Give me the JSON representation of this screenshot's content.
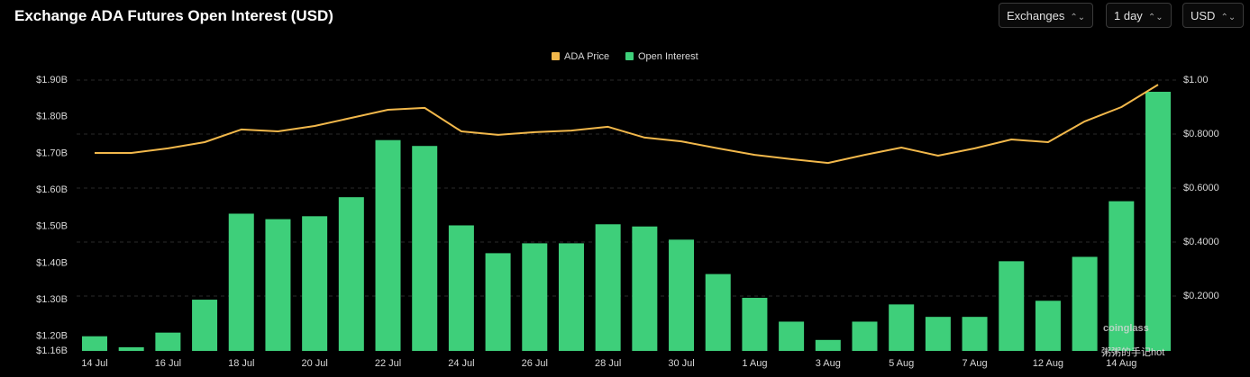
{
  "chart_data": {
    "type": "bar_line",
    "title": "Exchange ADA Futures Open Interest (USD)",
    "controls": [
      "Exchanges",
      "1 day",
      "USD"
    ],
    "watermark": "coinglass",
    "overlay_text": "粥粥的手记hot",
    "categories": [
      "14 Jul",
      null,
      "16 Jul",
      null,
      "18 Jul",
      null,
      "20 Jul",
      null,
      "22 Jul",
      null,
      "24 Jul",
      null,
      "26 Jul",
      null,
      "28 Jul",
      null,
      "30 Jul",
      null,
      "1 Aug",
      null,
      "3 Aug",
      null,
      "5 Aug",
      null,
      "7 Aug",
      null,
      "12 Aug",
      null,
      "14 Aug",
      null
    ],
    "series": [
      {
        "name": "ADA Price",
        "color": "#f2b84b",
        "type": "line",
        "axis": "y2",
        "values": [
          0.73,
          0.73,
          0.747,
          0.77,
          0.817,
          0.81,
          0.83,
          0.86,
          0.89,
          0.897,
          0.81,
          0.797,
          0.807,
          0.813,
          0.827,
          0.787,
          0.773,
          0.747,
          0.723,
          0.707,
          0.693,
          0.723,
          0.75,
          0.72,
          0.747,
          0.78,
          0.77,
          0.847,
          0.9,
          0.983
        ]
      },
      {
        "name": "Open Interest",
        "color": "#3ecf7a",
        "type": "bar",
        "values": [
          1.2,
          1.17,
          1.21,
          1.3,
          1.535,
          1.52,
          1.528,
          1.58,
          1.736,
          1.72,
          1.503,
          1.427,
          1.454,
          1.454,
          1.506,
          1.5,
          1.464,
          1.37,
          1.305,
          1.24,
          1.19,
          1.24,
          1.287,
          1.253,
          1.253,
          1.405,
          1.297,
          1.417,
          1.569,
          1.868
        ]
      }
    ],
    "ylim": [
      1.16,
      1.9
    ],
    "yticks": [
      {
        "value": 1.16,
        "label": "$1.16B"
      },
      {
        "value": 1.2,
        "label": "$1.20B"
      },
      {
        "value": 1.3,
        "label": "$1.30B"
      },
      {
        "value": 1.4,
        "label": "$1.40B"
      },
      {
        "value": 1.5,
        "label": "$1.50B"
      },
      {
        "value": 1.6,
        "label": "$1.60B"
      },
      {
        "value": 1.7,
        "label": "$1.70B"
      },
      {
        "value": 1.8,
        "label": "$1.80B"
      },
      {
        "value": 1.9,
        "label": "$1.90B"
      }
    ],
    "y2lim": [
      0,
      1.0
    ],
    "y2ticks": [
      {
        "value": 0.2,
        "label": "$0.2000"
      },
      {
        "value": 0.4,
        "label": "$0.4000"
      },
      {
        "value": 0.6,
        "label": "$0.6000"
      },
      {
        "value": 0.8,
        "label": "$0.8000"
      },
      {
        "value": 1.0,
        "label": "$1.00"
      }
    ],
    "grid": true
  }
}
